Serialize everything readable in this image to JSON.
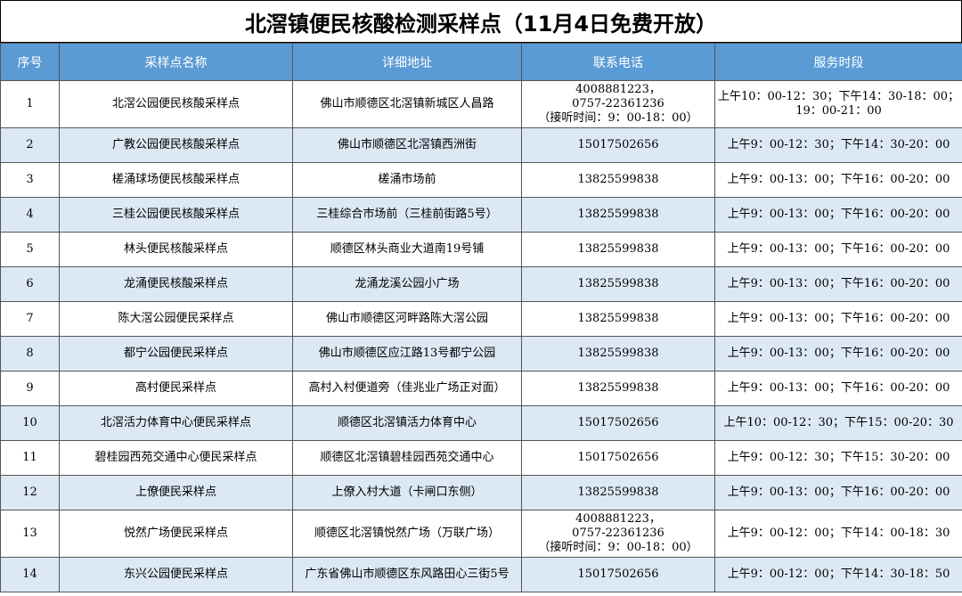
{
  "title": "北滘镇便民核酸检测采样点（11月4日免费开放）",
  "headers": [
    "序号",
    "采样点名称",
    "详细地址",
    "联系电话",
    "服务时段"
  ],
  "colors": {
    "header_bg": "#5b9bd5",
    "row_alt_bg": "#dce9f5",
    "row_bg": "#ffffff"
  },
  "rows": [
    {
      "no": "1",
      "name": "北滘公园便民核酸采样点",
      "address": "佛山市顺德区北滘镇新城区人昌路",
      "phone": [
        "4008881223，",
        "0757-22361236",
        "（接听时间：9：00-18：00）"
      ],
      "hours": [
        "上午10：00-12：30；下午14：30-18：00；",
        "19：00-21：00"
      ]
    },
    {
      "no": "2",
      "name": "广教公园便民核酸采样点",
      "address": "佛山市顺德区北滘镇西洲街",
      "phone": [
        "15017502656"
      ],
      "hours": [
        "上午9：00-12：30；下午14：30-20：00"
      ]
    },
    {
      "no": "3",
      "name": "槎涌球场便民核酸采样点",
      "address": "槎涌市场前",
      "phone": [
        "13825599838"
      ],
      "hours": [
        "上午9：00-13：00；下午16：00-20：00"
      ]
    },
    {
      "no": "4",
      "name": "三桂公园便民核酸采样点",
      "address": "三桂综合市场前（三桂前街路5号）",
      "phone": [
        "13825599838"
      ],
      "hours": [
        "上午9：00-13：00；下午16：00-20：00"
      ]
    },
    {
      "no": "5",
      "name": "林头便民核酸采样点",
      "address": "顺德区林头商业大道南19号铺",
      "phone": [
        "13825599838"
      ],
      "hours": [
        "上午9：00-13：00；下午16：00-20：00"
      ]
    },
    {
      "no": "6",
      "name": "龙涌便民核酸采样点",
      "address": "龙涌龙溪公园小广场",
      "phone": [
        "13825599838"
      ],
      "hours": [
        "上午9：00-13：00；下午16：00-20：00"
      ]
    },
    {
      "no": "7",
      "name": "陈大滘公园便民采样点",
      "address": "佛山市顺德区河畔路陈大滘公园",
      "phone": [
        "13825599838"
      ],
      "hours": [
        "上午9：00-13：00；下午16：00-20：00"
      ]
    },
    {
      "no": "8",
      "name": "都宁公园便民采样点",
      "address": "佛山市顺德区应江路13号都宁公园",
      "phone": [
        "13825599838"
      ],
      "hours": [
        "上午9：00-13：00；下午16：00-20：00"
      ]
    },
    {
      "no": "9",
      "name": "高村便民采样点",
      "address": "高村入村便道旁（佳兆业广场正对面）",
      "phone": [
        "13825599838"
      ],
      "hours": [
        "上午9：00-13：00；下午16：00-20：00"
      ]
    },
    {
      "no": "10",
      "name": "北滘活力体育中心便民采样点",
      "address": "顺德区北滘镇活力体育中心",
      "phone": [
        "15017502656"
      ],
      "hours": [
        "上午10：00-12：30；下午15：00-20：30"
      ]
    },
    {
      "no": "11",
      "name": "碧桂园西苑交通中心便民采样点",
      "address": "顺德区北滘镇碧桂园西苑交通中心",
      "phone": [
        "15017502656"
      ],
      "hours": [
        "上午9：00-12：30；下午15：30-20：00"
      ]
    },
    {
      "no": "12",
      "name": "上僚便民采样点",
      "address": "上僚入村大道（卡闸口东侧）",
      "phone": [
        "13825599838"
      ],
      "hours": [
        "上午9：00-13：00；下午16：00-20：00"
      ]
    },
    {
      "no": "13",
      "name": "悦然广场便民采样点",
      "address": "顺德区北滘镇悦然广场（万联广场）",
      "phone": [
        "4008881223，",
        "0757-22361236",
        "（接听时间：9：00-18：00）"
      ],
      "hours": [
        "上午9：00-12：00；下午14：00-18：30"
      ]
    },
    {
      "no": "14",
      "name": "东兴公园便民采样点",
      "address": "广东省佛山市顺德区东风路田心三街5号",
      "phone": [
        "15017502656"
      ],
      "hours": [
        "上午9：00-12：00；下午14：30-18：50"
      ]
    }
  ]
}
